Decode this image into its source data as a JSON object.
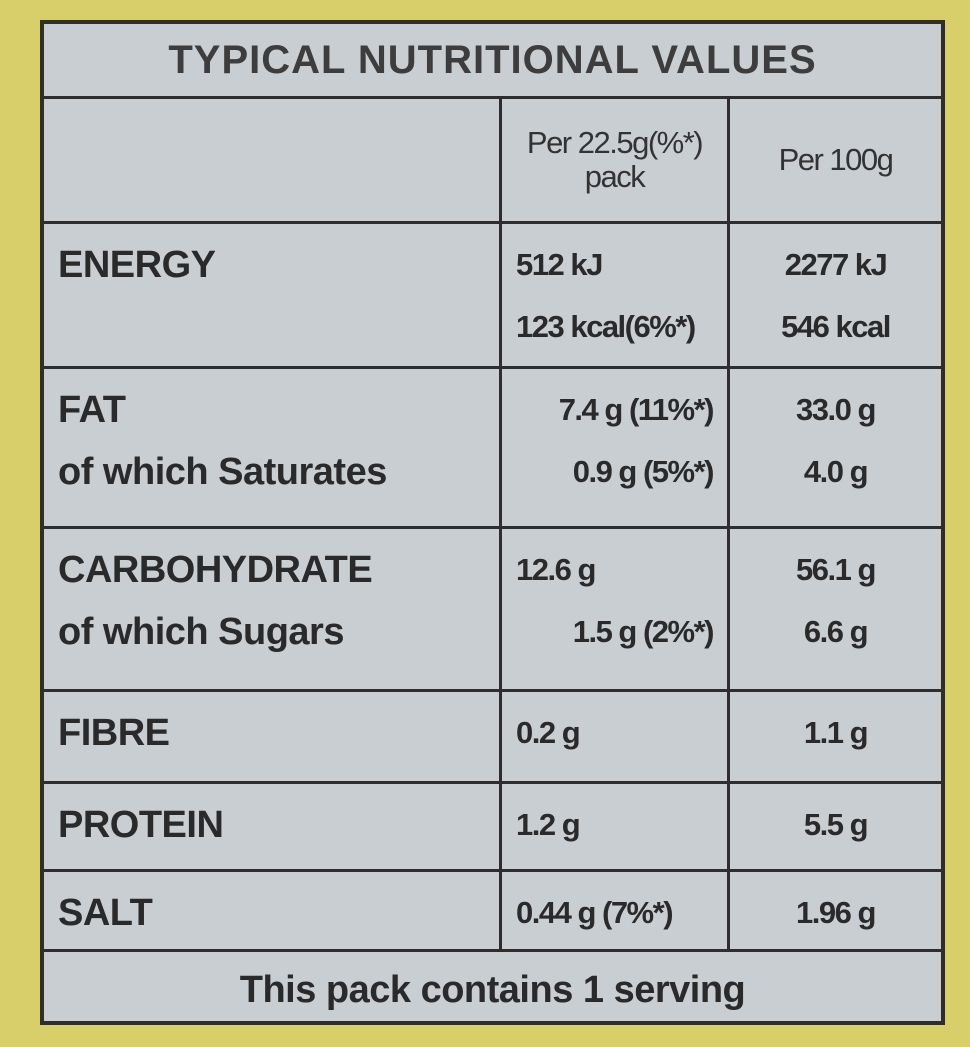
{
  "table": {
    "title": "TYPICAL NUTRITIONAL VALUES",
    "columns": [
      [
        "Per 22.5g(%*)",
        "pack"
      ],
      [
        "Per 100g"
      ]
    ],
    "rows": [
      {
        "labels": [
          "ENERGY"
        ],
        "per_pack": [
          "512 kJ",
          "123 kcal(6%*)"
        ],
        "per_100g": [
          "2277 kJ",
          "546 kcal"
        ]
      },
      {
        "labels": [
          "FAT",
          "of which Saturates"
        ],
        "per_pack": [
          "7.4 g (11%*)",
          "0.9 g (5%*)"
        ],
        "per_100g": [
          "33.0 g",
          "4.0 g"
        ]
      },
      {
        "labels": [
          "CARBOHYDRATE",
          "of which Sugars"
        ],
        "per_pack": [
          "12.6 g",
          "1.5 g (2%*)"
        ],
        "per_100g": [
          "56.1 g",
          "6.6 g"
        ]
      },
      {
        "labels": [
          "FIBRE"
        ],
        "per_pack": [
          "0.2 g"
        ],
        "per_100g": [
          "1.1 g"
        ]
      },
      {
        "labels": [
          "PROTEIN"
        ],
        "per_pack": [
          "1.2 g"
        ],
        "per_100g": [
          "5.5 g"
        ]
      },
      {
        "labels": [
          "SALT"
        ],
        "per_pack": [
          "0.44 g (7%*)"
        ],
        "per_100g": [
          "1.96 g"
        ]
      }
    ],
    "footer": "This pack contains 1 serving"
  }
}
